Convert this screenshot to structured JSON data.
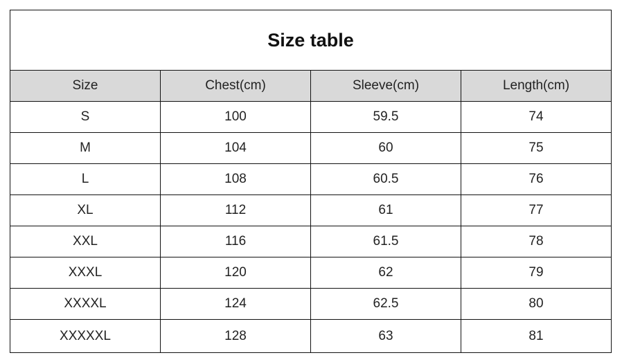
{
  "title": "Size table",
  "columns": [
    "Size",
    "Chest(cm)",
    "Sleeve(cm)",
    "Length(cm)"
  ],
  "rows": [
    [
      "S",
      "100",
      "59.5",
      "74"
    ],
    [
      "M",
      "104",
      "60",
      "75"
    ],
    [
      "L",
      "108",
      "60.5",
      "76"
    ],
    [
      "XL",
      "112",
      "61",
      "77"
    ],
    [
      "XXL",
      "116",
      "61.5",
      "78"
    ],
    [
      "XXXL",
      "120",
      "62",
      "79"
    ],
    [
      "XXXXL",
      "124",
      "62.5",
      "80"
    ],
    [
      "XXXXXL",
      "128",
      "63",
      "81"
    ]
  ],
  "colors": {
    "header_bg": "#d9d9d9",
    "border": "#111111"
  }
}
